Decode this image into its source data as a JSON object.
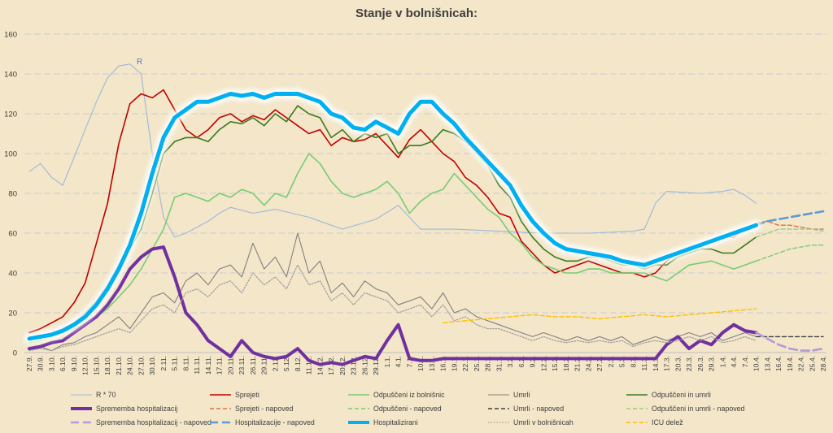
{
  "chart_data": {
    "type": "line",
    "title": "Stanje v bolnišnicah:",
    "ylim": [
      0,
      160
    ],
    "yticks": [
      0,
      20,
      40,
      60,
      80,
      100,
      120,
      140,
      160
    ],
    "grid": true,
    "legend_position": "bottom",
    "x_categories": [
      "27.9.",
      "30.9.",
      "3.10.",
      "6.10.",
      "9.10.",
      "12.10.",
      "15.10.",
      "18.10.",
      "21.10.",
      "24.10.",
      "27.10.",
      "30.10.",
      "2.11.",
      "5.11.",
      "8.11.",
      "11.11.",
      "14.11.",
      "17.11.",
      "20.11.",
      "23.11.",
      "26.11.",
      "29.11.",
      "2.12.",
      "5.12.",
      "8.12.",
      "11.12.",
      "14.12.",
      "17.12.",
      "20.12.",
      "23.12.",
      "26.12.",
      "29.12.",
      "1.1.",
      "4.1.",
      "7.1.",
      "10.1.",
      "13.1.",
      "16.1.",
      "19.1.",
      "22.1.",
      "25.1.",
      "28.1.",
      "31.1.",
      "3.2.",
      "6.2.",
      "9.2.",
      "12.2.",
      "15.2.",
      "18.2.",
      "21.2.",
      "24.2.",
      "27.2.",
      "2.3.",
      "5.3.",
      "8.3.",
      "11.3.",
      "14.3.",
      "17.3.",
      "20.3.",
      "23.3.",
      "26.3.",
      "29.3.",
      "1.4.",
      "4.4.",
      "7.4.",
      "10.4.",
      "13.4.",
      "16.4.",
      "19.4.",
      "22.4.",
      "25.4.",
      "28.4."
    ],
    "annotation": "R",
    "series": [
      {
        "name": "R * 70",
        "color": "#9db8d8",
        "style": "thin",
        "x": [
          0,
          1,
          2,
          3,
          4,
          5,
          6,
          7,
          8,
          9,
          10,
          11,
          12,
          13,
          14,
          15,
          16,
          17,
          18,
          20,
          22,
          25,
          28,
          31,
          33,
          35,
          38,
          42,
          46,
          50,
          54,
          55,
          56,
          57,
          60,
          62,
          63,
          64,
          65
        ],
        "y": [
          91,
          95,
          88,
          84,
          98,
          112,
          126,
          138,
          144,
          145,
          140,
          100,
          68,
          58,
          60,
          63,
          66,
          70,
          73,
          70,
          72,
          68,
          62,
          67,
          74,
          62,
          62,
          61,
          60,
          60,
          61,
          62,
          75,
          81,
          80,
          81,
          82,
          79,
          75
        ]
      },
      {
        "name": "Sprejeti",
        "color": "#c00000",
        "style": "solid",
        "x": [
          0,
          1,
          2,
          3,
          4,
          5,
          6,
          7,
          8,
          9,
          10,
          11,
          12,
          13,
          14,
          15,
          16,
          17,
          18,
          19,
          20,
          21,
          22,
          23,
          24,
          25,
          26,
          27,
          28,
          29,
          30,
          31,
          32,
          33,
          34,
          35,
          36,
          37,
          38,
          39,
          40,
          41,
          42,
          43,
          44,
          45,
          46,
          47,
          48,
          49,
          50,
          51,
          52,
          53,
          54,
          55,
          56,
          57,
          58,
          59,
          60,
          61,
          62,
          63,
          64,
          65
        ],
        "y": [
          10,
          12,
          15,
          18,
          25,
          35,
          55,
          75,
          105,
          125,
          130,
          128,
          132,
          122,
          112,
          108,
          112,
          118,
          120,
          116,
          119,
          117,
          122,
          118,
          114,
          110,
          112,
          104,
          108,
          106,
          107,
          110,
          104,
          98,
          107,
          112,
          106,
          100,
          96,
          88,
          84,
          78,
          70,
          68,
          56,
          50,
          44,
          40,
          42,
          44,
          46,
          44,
          42,
          40,
          40,
          38,
          40,
          46,
          50,
          53,
          53,
          56,
          58,
          58,
          62,
          65
        ]
      },
      {
        "name": "Sprejeti - napoved",
        "color": "#e07050",
        "style": "dashed",
        "x": [
          65,
          66,
          67,
          68,
          69,
          70,
          71
        ],
        "y": [
          65,
          66,
          64,
          64,
          63,
          62,
          62
        ]
      },
      {
        "name": "Odpuščeni iz bolnišnic",
        "color": "#77cc77",
        "style": "solid",
        "x": [
          0,
          1,
          2,
          3,
          4,
          5,
          6,
          7,
          8,
          9,
          10,
          11,
          12,
          13,
          14,
          15,
          16,
          17,
          18,
          19,
          20,
          21,
          22,
          23,
          24,
          25,
          26,
          27,
          28,
          29,
          30,
          31,
          32,
          33,
          34,
          35,
          36,
          37,
          38,
          39,
          40,
          41,
          42,
          43,
          44,
          45,
          46,
          47,
          48,
          49,
          50,
          51,
          52,
          53,
          54,
          55,
          56,
          57,
          58,
          59,
          60,
          61,
          62,
          63,
          64,
          65
        ],
        "y": [
          5,
          6,
          8,
          10,
          12,
          14,
          18,
          22,
          28,
          34,
          42,
          52,
          62,
          78,
          80,
          78,
          76,
          80,
          78,
          82,
          80,
          74,
          80,
          78,
          90,
          100,
          95,
          86,
          80,
          78,
          80,
          82,
          86,
          80,
          70,
          76,
          80,
          82,
          90,
          84,
          78,
          72,
          68,
          60,
          55,
          48,
          44,
          42,
          40,
          40,
          42,
          42,
          40,
          40,
          40,
          40,
          38,
          36,
          40,
          44,
          45,
          46,
          44,
          42,
          44,
          46
        ]
      },
      {
        "name": "Odpuščeni - napoved",
        "color": "#77cc77",
        "style": "dashed",
        "x": [
          65,
          66,
          67,
          68,
          69,
          70,
          71
        ],
        "y": [
          46,
          48,
          50,
          52,
          53,
          54,
          54
        ]
      },
      {
        "name": "Umrli",
        "color": "#808080",
        "style": "thin",
        "x": [
          0,
          1,
          2,
          3,
          4,
          5,
          6,
          7,
          8,
          9,
          10,
          11,
          12,
          13,
          14,
          15,
          16,
          17,
          18,
          19,
          20,
          21,
          22,
          23,
          24,
          25,
          26,
          27,
          28,
          29,
          30,
          31,
          32,
          33,
          34,
          35,
          36,
          37,
          38,
          39,
          40,
          41,
          42,
          43,
          44,
          45,
          46,
          47,
          48,
          49,
          50,
          51,
          52,
          53,
          54,
          55,
          56,
          57,
          58,
          59,
          60,
          61,
          62,
          63,
          64,
          65
        ],
        "y": [
          2,
          3,
          1,
          4,
          5,
          8,
          10,
          14,
          18,
          12,
          20,
          28,
          30,
          25,
          36,
          40,
          34,
          42,
          44,
          38,
          55,
          42,
          48,
          38,
          60,
          40,
          46,
          30,
          35,
          28,
          36,
          32,
          30,
          24,
          26,
          28,
          22,
          30,
          20,
          22,
          18,
          16,
          14,
          12,
          10,
          8,
          10,
          8,
          6,
          8,
          6,
          8,
          6,
          8,
          4,
          6,
          8,
          6,
          8,
          10,
          8,
          10,
          6,
          8,
          10,
          8
        ]
      },
      {
        "name": "Umrli - napoved",
        "color": "#404040",
        "style": "dashed",
        "x": [
          65,
          66,
          67,
          68,
          69,
          70,
          71
        ],
        "y": [
          8,
          8,
          8,
          8,
          8,
          8,
          8
        ]
      },
      {
        "name": "Odpuščeni in umrli",
        "color": "#3a7a20",
        "style": "solid",
        "x": [
          0,
          1,
          2,
          3,
          4,
          5,
          6,
          7,
          8,
          9,
          10,
          11,
          12,
          13,
          14,
          15,
          16,
          17,
          18,
          19,
          20,
          21,
          22,
          23,
          24,
          25,
          26,
          27,
          28,
          29,
          30,
          31,
          32,
          33,
          34,
          35,
          36,
          37,
          38,
          39,
          40,
          41,
          42,
          43,
          44,
          45,
          46,
          47,
          48,
          49,
          50,
          51,
          52,
          53,
          54,
          55,
          56,
          57,
          58,
          59,
          60,
          61,
          62,
          63,
          64,
          65
        ],
        "y": [
          7,
          8,
          9,
          12,
          15,
          20,
          26,
          34,
          44,
          52,
          62,
          80,
          100,
          106,
          108,
          108,
          106,
          112,
          116,
          115,
          118,
          114,
          120,
          116,
          124,
          120,
          118,
          108,
          112,
          106,
          110,
          108,
          110,
          100,
          104,
          104,
          106,
          112,
          110,
          106,
          100,
          94,
          84,
          78,
          66,
          58,
          52,
          48,
          46,
          46,
          48,
          48,
          46,
          44,
          44,
          42,
          44,
          44,
          48,
          50,
          52,
          52,
          50,
          50,
          54,
          58
        ]
      },
      {
        "name": "Odpuščeni in umrli - napoved",
        "color": "#9acd82",
        "style": "dashed",
        "x": [
          65,
          66,
          67,
          68,
          69,
          70,
          71
        ],
        "y": [
          58,
          60,
          62,
          62,
          62,
          62,
          61
        ]
      },
      {
        "name": "Sprememba hospitalizacij",
        "color": "#7030a0",
        "style": "thick",
        "x": [
          0,
          1,
          2,
          3,
          4,
          5,
          6,
          7,
          8,
          9,
          10,
          11,
          12,
          13,
          14,
          15,
          16,
          17,
          18,
          19,
          20,
          21,
          22,
          23,
          24,
          25,
          26,
          27,
          28,
          29,
          30,
          31,
          32,
          33,
          34,
          35,
          36,
          37,
          38,
          39,
          40,
          41,
          42,
          43,
          44,
          45,
          46,
          47,
          48,
          49,
          50,
          51,
          52,
          53,
          54,
          55,
          56,
          57,
          58,
          59,
          60,
          61,
          62,
          63,
          64,
          65
        ],
        "y": [
          2,
          3,
          5,
          6,
          10,
          14,
          18,
          24,
          32,
          42,
          48,
          52,
          53,
          38,
          20,
          14,
          6,
          2,
          -2,
          6,
          0,
          -2,
          -3,
          -2,
          2,
          -4,
          -6,
          -5,
          -6,
          -4,
          -2,
          -3,
          6,
          14,
          -3,
          -4,
          -4,
          -3,
          -3,
          -3,
          -3,
          -3,
          -3,
          -3,
          -3,
          -3,
          -3,
          -3,
          -3,
          -3,
          -3,
          -3,
          -3,
          -3,
          -3,
          -3,
          -3,
          4,
          8,
          2,
          6,
          4,
          10,
          14,
          11,
          10
        ]
      },
      {
        "name": "Sprememba hospitalizacij - napoved",
        "color": "#b39ad8",
        "style": "dashed-thick",
        "x": [
          65,
          66,
          67,
          68,
          69,
          70,
          71
        ],
        "y": [
          10,
          7,
          4,
          2,
          1,
          1,
          2
        ]
      },
      {
        "name": "Hospitalizacije - napoved",
        "color": "#5b9bd5",
        "style": "dashed-thick",
        "x": [
          65,
          66,
          67,
          68,
          69,
          70,
          71
        ],
        "y": [
          64,
          66,
          67,
          68,
          69,
          70,
          71
        ]
      },
      {
        "name": "Hospitalizirani",
        "color": "#00b0f0",
        "style": "glow",
        "x": [
          0,
          1,
          2,
          3,
          4,
          5,
          6,
          7,
          8,
          9,
          10,
          11,
          12,
          13,
          14,
          15,
          16,
          17,
          18,
          19,
          20,
          21,
          22,
          23,
          24,
          25,
          26,
          27,
          28,
          29,
          30,
          31,
          32,
          33,
          34,
          35,
          36,
          37,
          38,
          39,
          40,
          41,
          42,
          43,
          44,
          45,
          46,
          47,
          48,
          49,
          50,
          51,
          52,
          53,
          54,
          55,
          56,
          57,
          58,
          59,
          60,
          61,
          62,
          63,
          64,
          65
        ],
        "y": [
          7,
          8,
          9,
          11,
          14,
          18,
          24,
          32,
          42,
          54,
          70,
          90,
          108,
          118,
          122,
          126,
          126,
          128,
          130,
          129,
          130,
          128,
          130,
          130,
          130,
          128,
          126,
          120,
          118,
          113,
          112,
          116,
          113,
          110,
          120,
          126,
          126,
          120,
          115,
          108,
          102,
          96,
          90,
          84,
          74,
          66,
          60,
          55,
          52,
          51,
          50,
          49,
          48,
          46,
          45,
          44,
          46,
          48,
          50,
          52,
          54,
          56,
          58,
          60,
          62,
          64
        ]
      },
      {
        "name": "Umrli v bolnišnicah",
        "color": "#a0a0a0",
        "style": "dotted",
        "x": [
          0,
          1,
          2,
          3,
          4,
          5,
          6,
          7,
          8,
          9,
          10,
          11,
          12,
          13,
          14,
          15,
          16,
          17,
          18,
          19,
          20,
          21,
          22,
          23,
          24,
          25,
          26,
          27,
          28,
          29,
          30,
          31,
          32,
          33,
          34,
          35,
          36,
          37,
          38,
          39,
          40,
          41,
          42,
          43,
          44,
          45,
          46,
          47,
          48,
          49,
          50,
          51,
          52,
          53,
          54,
          55,
          56,
          57,
          58,
          59,
          60,
          61,
          62,
          63,
          64,
          65
        ],
        "y": [
          1,
          2,
          1,
          3,
          4,
          6,
          8,
          10,
          12,
          10,
          16,
          22,
          24,
          20,
          30,
          32,
          28,
          34,
          36,
          30,
          40,
          34,
          38,
          32,
          44,
          34,
          36,
          26,
          30,
          24,
          30,
          28,
          26,
          20,
          22,
          24,
          18,
          24,
          16,
          18,
          14,
          12,
          12,
          10,
          8,
          6,
          8,
          6,
          5,
          6,
          5,
          6,
          5,
          6,
          3,
          5,
          6,
          5,
          6,
          8,
          6,
          8,
          5,
          6,
          8,
          6
        ]
      },
      {
        "name": "ICU delež",
        "color": "#ffc000",
        "style": "dashed",
        "x": [
          37,
          39,
          41,
          43,
          45,
          47,
          49,
          51,
          53,
          55,
          57,
          59,
          61,
          63,
          65
        ],
        "y": [
          15,
          16,
          17,
          18,
          19,
          18,
          18,
          17,
          18,
          19,
          18,
          19,
          20,
          21,
          22
        ]
      }
    ],
    "legend": [
      "R * 70",
      "Sprejeti",
      "Odpuščeni iz bolnišnic",
      "Umrli",
      "Odpuščeni in umrli",
      "Sprememba hospitalizacij",
      "Sprejeti - napoved",
      "Odpuščeni - napoved",
      "Umrli - napoved",
      "Odpuščeni in umrli - napoved",
      "Sprememba hospitalizacij - napoved",
      "Hospitalizacije - napoved",
      "Hospitalizirani",
      "Umrli v bolnišnicah",
      "ICU delež"
    ]
  }
}
